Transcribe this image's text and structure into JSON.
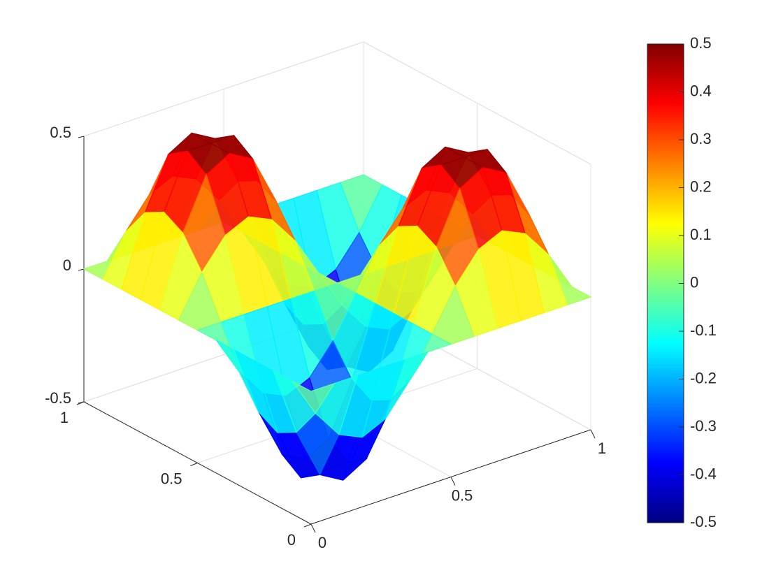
{
  "chart_data": {
    "type": "surface",
    "x": [
      0,
      0.083,
      0.167,
      0.25,
      0.333,
      0.417,
      0.5,
      0.583,
      0.667,
      0.75,
      0.833,
      0.917,
      1
    ],
    "y": [
      0,
      0.083,
      0.167,
      0.25,
      0.333,
      0.417,
      0.5,
      0.583,
      0.667,
      0.75,
      0.833,
      0.917,
      1
    ],
    "z": [
      [
        0,
        0,
        0,
        0,
        0,
        0,
        0,
        0,
        0,
        0,
        0,
        0,
        0
      ],
      [
        0,
        -0.15,
        -0.26,
        -0.3,
        -0.26,
        -0.15,
        0,
        0.15,
        0.26,
        0.3,
        0.26,
        0.15,
        0
      ],
      [
        0,
        -0.26,
        -0.45,
        -0.5,
        -0.45,
        -0.26,
        0,
        0.26,
        0.45,
        0.5,
        0.45,
        0.26,
        0
      ],
      [
        0,
        -0.3,
        -0.5,
        -0.5,
        -0.5,
        -0.3,
        0,
        0.3,
        0.5,
        0.5,
        0.5,
        0.3,
        0
      ],
      [
        0,
        -0.26,
        -0.45,
        -0.5,
        -0.45,
        -0.26,
        0,
        0.26,
        0.45,
        0.5,
        0.45,
        0.26,
        0
      ],
      [
        0,
        -0.15,
        -0.26,
        -0.3,
        -0.26,
        -0.15,
        0,
        0.15,
        0.26,
        0.3,
        0.26,
        0.15,
        0
      ],
      [
        0,
        0,
        0,
        0,
        0,
        0,
        0,
        0,
        0,
        0,
        0,
        0,
        0
      ],
      [
        0,
        0.15,
        0.26,
        0.3,
        0.26,
        0.15,
        0,
        -0.15,
        -0.26,
        -0.3,
        -0.26,
        -0.15,
        0
      ],
      [
        0,
        0.26,
        0.45,
        0.5,
        0.45,
        0.26,
        0,
        -0.26,
        -0.45,
        -0.5,
        -0.45,
        -0.26,
        0
      ],
      [
        0,
        0.3,
        0.5,
        0.5,
        0.5,
        0.3,
        0,
        -0.3,
        -0.5,
        -0.5,
        -0.5,
        -0.3,
        0
      ],
      [
        0,
        0.26,
        0.45,
        0.5,
        0.45,
        0.26,
        0,
        -0.26,
        -0.45,
        -0.5,
        -0.45,
        -0.26,
        0
      ],
      [
        0,
        0.15,
        0.26,
        0.3,
        0.26,
        0.15,
        0,
        -0.15,
        -0.26,
        -0.3,
        -0.26,
        -0.15,
        0
      ],
      [
        0,
        0,
        0,
        0,
        0,
        0,
        0,
        0,
        0,
        0,
        0,
        0,
        0
      ]
    ],
    "colormap": "jet",
    "xlim": [
      0,
      1
    ],
    "xticks": [
      0,
      0.5,
      1
    ],
    "ylim": [
      0,
      1
    ],
    "yticks": [
      0,
      0.5,
      1
    ],
    "zlim": [
      -0.5,
      0.5
    ],
    "zticks": [
      -0.5,
      0,
      0.5
    ],
    "clim": [
      -0.5,
      0.5
    ],
    "cticks": [
      -0.5,
      -0.4,
      -0.3,
      -0.2,
      -0.1,
      0,
      0.1,
      0.2,
      0.3,
      0.4,
      0.5
    ],
    "grid": true
  }
}
